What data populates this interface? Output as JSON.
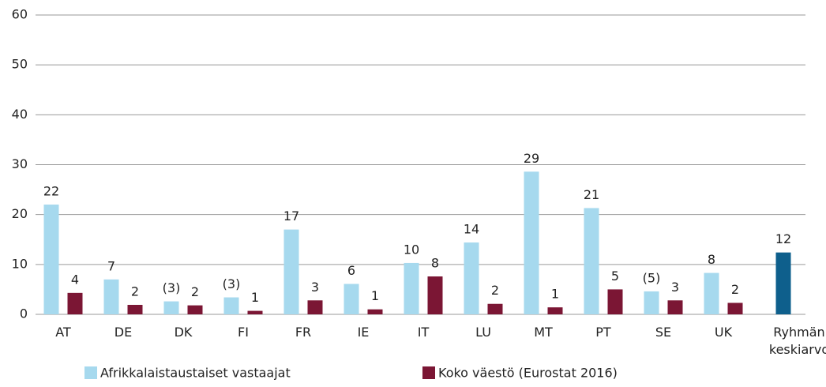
{
  "chart_data": {
    "type": "bar",
    "categories": [
      "AT",
      "DE",
      "DK",
      "FI",
      "FR",
      "IE",
      "IT",
      "LU",
      "MT",
      "PT",
      "SE",
      "UK",
      "Ryhmän keskiarvo"
    ],
    "series": [
      {
        "name": "Afrikkalaistaustaiset vastaajat",
        "color": "#a6d9ee",
        "values": [
          22,
          7,
          2.6,
          3.4,
          17,
          6.1,
          10.3,
          14.4,
          28.6,
          21.3,
          4.6,
          8.3,
          null
        ],
        "value_labels": [
          "22",
          "7",
          "(3)",
          "(3)",
          "17",
          "6",
          "10",
          "14",
          "29",
          "21",
          "(5)",
          "8",
          null
        ]
      },
      {
        "name": "Koko väestö (Eurostat 2016)",
        "color": "#7b1634",
        "values": [
          4.3,
          1.9,
          1.8,
          0.7,
          2.8,
          1,
          7.6,
          2.1,
          1.4,
          5,
          2.8,
          2.3,
          null
        ],
        "value_labels": [
          "4",
          "2",
          "2",
          "1",
          "3",
          "1",
          "8",
          "2",
          "1",
          "5",
          "3",
          "2",
          null
        ]
      },
      {
        "color": "#0e5f8c",
        "values": [
          null,
          null,
          null,
          null,
          null,
          null,
          null,
          null,
          null,
          null,
          null,
          null,
          12.4
        ],
        "value_labels": [
          null,
          null,
          null,
          null,
          null,
          null,
          null,
          null,
          null,
          null,
          null,
          null,
          "12"
        ]
      }
    ],
    "ylim": [
      0,
      60
    ],
    "yticks": [
      0,
      10,
      20,
      30,
      40,
      50,
      60
    ],
    "grid": true,
    "legend": "bottom"
  }
}
